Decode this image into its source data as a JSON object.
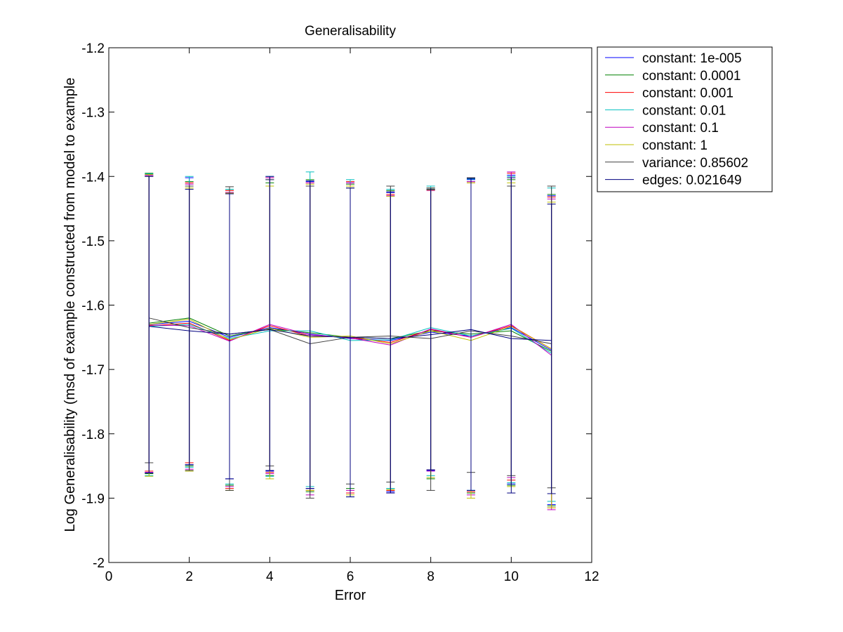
{
  "chart_data": {
    "type": "line",
    "title": "Generalisability",
    "xlabel": "Error",
    "ylabel": "Log Generalisability (msd of example constructed from model to example",
    "xlim": [
      0,
      12
    ],
    "ylim": [
      -2,
      -1.2
    ],
    "xticks": [
      0,
      2,
      4,
      6,
      8,
      10,
      12
    ],
    "yticks": [
      -1.2,
      -1.3,
      -1.4,
      -1.5,
      -1.6,
      -1.7,
      -1.8,
      -1.9,
      -2
    ],
    "ytick_labels": [
      "-1.2",
      "-1.3",
      "-1.4",
      "-1.5",
      "-1.6",
      "-1.7",
      "-1.8",
      "-1.9",
      "-2"
    ],
    "grid": false,
    "legend_position": "outside-top-right",
    "x": [
      1,
      2,
      3,
      4,
      5,
      6,
      7,
      8,
      9,
      10,
      11
    ],
    "series": [
      {
        "name": "constant: 1e-005",
        "color": "#0000ff",
        "values": [
          -1.63,
          -1.625,
          -1.65,
          -1.635,
          -1.645,
          -1.652,
          -1.655,
          -1.642,
          -1.648,
          -1.635,
          -1.67
        ],
        "lower": [
          -1.86,
          -1.848,
          -1.87,
          -1.858,
          -1.885,
          -1.898,
          -1.89,
          -1.857,
          -1.888,
          -1.878,
          -1.91
        ],
        "upper": [
          -1.398,
          -1.402,
          -1.425,
          -1.405,
          -1.408,
          -1.41,
          -1.425,
          -1.42,
          -1.405,
          -1.398,
          -1.43
        ]
      },
      {
        "name": "constant: 0.0001",
        "color": "#008000",
        "values": [
          -1.628,
          -1.62,
          -1.648,
          -1.637,
          -1.643,
          -1.65,
          -1.652,
          -1.64,
          -1.645,
          -1.64,
          -1.672
        ],
        "lower": [
          -1.862,
          -1.85,
          -1.88,
          -1.865,
          -1.89,
          -1.885,
          -1.885,
          -1.87,
          -1.892,
          -1.88,
          -1.912
        ],
        "upper": [
          -1.395,
          -1.408,
          -1.42,
          -1.41,
          -1.405,
          -1.412,
          -1.422,
          -1.418,
          -1.408,
          -1.405,
          -1.428
        ]
      },
      {
        "name": "constant: 0.001",
        "color": "#ff0000",
        "values": [
          -1.632,
          -1.628,
          -1.655,
          -1.632,
          -1.648,
          -1.65,
          -1.658,
          -1.638,
          -1.65,
          -1.632,
          -1.668
        ],
        "lower": [
          -1.858,
          -1.845,
          -1.885,
          -1.86,
          -1.888,
          -1.892,
          -1.888,
          -1.856,
          -1.89,
          -1.872,
          -1.915
        ],
        "upper": [
          -1.4,
          -1.41,
          -1.422,
          -1.402,
          -1.41,
          -1.408,
          -1.428,
          -1.42,
          -1.41,
          -1.395,
          -1.432
        ]
      },
      {
        "name": "constant: 0.01",
        "color": "#00bfbf",
        "values": [
          -1.633,
          -1.63,
          -1.652,
          -1.64,
          -1.64,
          -1.655,
          -1.654,
          -1.635,
          -1.648,
          -1.636,
          -1.675
        ],
        "lower": [
          -1.865,
          -1.852,
          -1.878,
          -1.866,
          -1.882,
          -1.898,
          -1.885,
          -1.865,
          -1.888,
          -1.876,
          -1.905
        ],
        "upper": [
          -1.396,
          -1.4,
          -1.42,
          -1.4,
          -1.393,
          -1.405,
          -1.42,
          -1.415,
          -1.404,
          -1.4,
          -1.418
        ]
      },
      {
        "name": "constant: 0.1",
        "color": "#bf00bf",
        "values": [
          -1.631,
          -1.632,
          -1.656,
          -1.63,
          -1.646,
          -1.651,
          -1.662,
          -1.637,
          -1.65,
          -1.63,
          -1.678
        ],
        "lower": [
          -1.86,
          -1.855,
          -1.882,
          -1.862,
          -1.895,
          -1.888,
          -1.892,
          -1.858,
          -1.895,
          -1.868,
          -1.918
        ],
        "upper": [
          -1.398,
          -1.412,
          -1.425,
          -1.402,
          -1.41,
          -1.41,
          -1.43,
          -1.422,
          -1.408,
          -1.393,
          -1.435
        ]
      },
      {
        "name": "constant: 1",
        "color": "#bfbf00",
        "values": [
          -1.63,
          -1.622,
          -1.654,
          -1.636,
          -1.65,
          -1.648,
          -1.66,
          -1.64,
          -1.655,
          -1.633,
          -1.668
        ],
        "lower": [
          -1.866,
          -1.858,
          -1.888,
          -1.87,
          -1.888,
          -1.895,
          -1.887,
          -1.868,
          -1.9,
          -1.882,
          -1.915
        ],
        "upper": [
          -1.397,
          -1.418,
          -1.426,
          -1.415,
          -1.412,
          -1.415,
          -1.431,
          -1.421,
          -1.41,
          -1.41,
          -1.44
        ]
      },
      {
        "name": "variance: 0.85602",
        "color": "#404040",
        "values": [
          -1.62,
          -1.635,
          -1.645,
          -1.638,
          -1.66,
          -1.65,
          -1.648,
          -1.652,
          -1.64,
          -1.648,
          -1.66
        ],
        "lower": [
          -1.845,
          -1.857,
          -1.888,
          -1.85,
          -1.9,
          -1.878,
          -1.875,
          -1.888,
          -1.86,
          -1.865,
          -1.884
        ],
        "upper": [
          -1.4,
          -1.415,
          -1.416,
          -1.405,
          -1.415,
          -1.418,
          -1.415,
          -1.418,
          -1.402,
          -1.415,
          -1.415
        ]
      },
      {
        "name": "edges: 0.021649",
        "color": "#00007f",
        "values": [
          -1.633,
          -1.64,
          -1.645,
          -1.638,
          -1.648,
          -1.65,
          -1.652,
          -1.646,
          -1.638,
          -1.652,
          -1.655
        ],
        "lower": [
          -1.861,
          -1.848,
          -1.87,
          -1.857,
          -1.885,
          -1.898,
          -1.892,
          -1.856,
          -1.888,
          -1.892,
          -1.893
        ],
        "upper": [
          -1.4,
          -1.42,
          -1.427,
          -1.4,
          -1.407,
          -1.418,
          -1.424,
          -1.42,
          -1.403,
          -1.402,
          -1.443
        ]
      }
    ]
  }
}
